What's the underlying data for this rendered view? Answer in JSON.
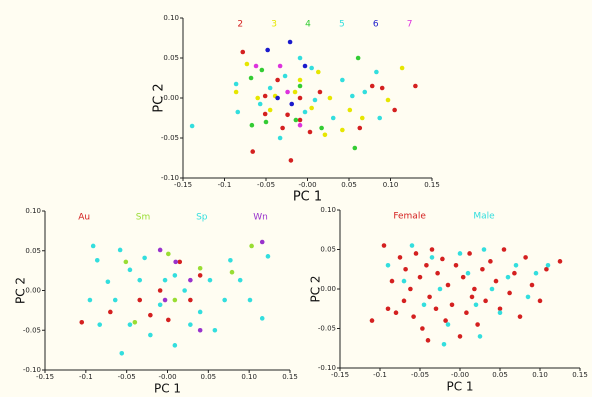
{
  "chart_data": [
    {
      "type": "scatter",
      "x_label": "PC 1",
      "y_label": "PC 2",
      "xlim": [
        -0.15,
        0.15
      ],
      "xticks": [
        -0.15,
        -0.1,
        -0.05,
        {
          "value": 0,
          "label": "-0.00"
        },
        0.05,
        {
          "value": 0.1,
          "label": "0.10"
        },
        0.15
      ],
      "ylim": [
        -0.1,
        0.1
      ],
      "yticks": [
        {
          "value": -0.1,
          "label": "-0.10"
        },
        -0.05,
        {
          "value": 0,
          "label": "-0.00"
        },
        0.05,
        {
          "value": 0.1,
          "label": "0.10"
        }
      ],
      "series": [
        {
          "name": "2",
          "color": "#d42020",
          "x": [
            -0.066,
            -0.02,
            -0.051,
            0.015,
            -0.009,
            0.078,
            0.09,
            0.13,
            0.063,
            -0.009,
            -0.03,
            -0.078,
            -0.051,
            0.105,
            0.003,
            -0.024,
            -0.036
          ],
          "values": [
            -0.067,
            -0.078,
            -0.02,
            0.0075,
            0.0,
            0.015,
            0.0125,
            0.015,
            -0.0375,
            -0.0275,
            -0.0375,
            0.0575,
            0.0025,
            -0.015,
            -0.0425,
            -0.021,
            0.0225
          ]
        },
        {
          "name": "3",
          "color": "#e6e600",
          "x": [
            -0.086,
            -0.06,
            -0.039,
            -0.009,
            0.013,
            0.051,
            0.066,
            0.042,
            0.021,
            0.114,
            0.097,
            0.005,
            -0.015,
            -0.073,
            0.027,
            -0.045
          ],
          "values": [
            0.0075,
            0.0,
            0.0025,
            0.0225,
            0.0325,
            -0.015,
            -0.025,
            -0.04,
            -0.046,
            0.0375,
            -0.0025,
            -0.0125,
            0.0075,
            0.0425,
            0.0,
            -0.015
          ]
        },
        {
          "name": "4",
          "color": "#33cc33",
          "x": [
            -0.068,
            -0.05,
            -0.014,
            0.061,
            0.057,
            -0.055,
            -0.009,
            0.017,
            -0.067
          ],
          "values": [
            0.025,
            -0.03,
            -0.0275,
            0.05,
            -0.0625,
            0.035,
            0.015,
            -0.0375,
            -0.034
          ]
        },
        {
          "name": "5",
          "color": "#33dede",
          "x": [
            -0.139,
            -0.086,
            -0.045,
            -0.027,
            -0.009,
            0.005,
            0.042,
            0.054,
            0.069,
            0.083,
            0.087,
            -0.057,
            -0.033,
            0.009,
            0.031,
            -0.084,
            -0.003
          ],
          "values": [
            -0.035,
            0.0175,
            0.0125,
            0.0275,
            0.05,
            0.0375,
            0.0225,
            0.0025,
            0.0075,
            0.0325,
            -0.025,
            -0.0075,
            -0.05,
            -0.0025,
            -0.025,
            -0.0175,
            -0.0175
          ]
        },
        {
          "name": "6",
          "color": "#1a1acc",
          "x": [
            -0.048,
            -0.021,
            -0.003,
            -0.019,
            -0.036
          ],
          "values": [
            0.06,
            0.07,
            0.04,
            -0.0075,
            0.0
          ]
        },
        {
          "name": "7",
          "color": "#dd33dd",
          "x": [
            -0.062,
            -0.033,
            -0.024,
            -0.009
          ],
          "values": [
            0.04,
            0.04,
            0.0075,
            -0.034
          ]
        }
      ]
    },
    {
      "type": "scatter",
      "x_label": "PC 1",
      "y_label": "PC 2",
      "xlim": [
        -0.15,
        0.15
      ],
      "xticks": [
        -0.15,
        -0.1,
        -0.05,
        {
          "value": 0,
          "label": "-0.00"
        },
        0.05,
        {
          "value": 0.1,
          "label": "0.10"
        },
        0.15
      ],
      "ylim": [
        -0.1,
        0.1
      ],
      "yticks": [
        {
          "value": -0.1,
          "label": "-0.10"
        },
        -0.05,
        {
          "value": 0,
          "label": "0.00"
        },
        0.05,
        {
          "value": 0.1,
          "label": "0.10"
        }
      ],
      "series": [
        {
          "name": "Au",
          "color": "#d42020",
          "x": [
            -0.105,
            -0.07,
            -0.034,
            -0.009,
            0.001,
            0.028,
            0.04,
            -0.021,
            0.015
          ],
          "values": [
            -0.04,
            -0.027,
            -0.012,
            0.0,
            -0.037,
            -0.012,
            0.019,
            -0.031,
            0.036
          ]
        },
        {
          "name": "Sm",
          "color": "#99dd33",
          "x": [
            -0.051,
            0.001,
            0.079,
            0.103,
            0.04,
            -0.04,
            0.009
          ],
          "values": [
            0.036,
            0.046,
            0.023,
            0.056,
            0.028,
            -0.04,
            -0.012
          ]
        },
        {
          "name": "Sp",
          "color": "#33dede",
          "x": [
            -0.091,
            -0.058,
            -0.086,
            -0.073,
            -0.046,
            -0.028,
            -0.003,
            0.021,
            0.052,
            0.07,
            0.116,
            0.101,
            0.089,
            0.123,
            -0.056,
            -0.021,
            0.009,
            -0.095,
            -0.064,
            -0.046,
            0.028,
            0.058,
            -0.009,
            0.04,
            -0.083,
            0.077,
            -0.034,
            0.009
          ],
          "values": [
            0.056,
            0.051,
            0.038,
            0.011,
            0.026,
            0.041,
            0.013,
            0.0,
            0.013,
            -0.012,
            -0.035,
            -0.012,
            0.013,
            0.043,
            -0.079,
            -0.056,
            -0.069,
            -0.012,
            -0.012,
            -0.043,
            -0.043,
            -0.05,
            -0.018,
            -0.027,
            -0.043,
            0.038,
            0.013,
            0.019
          ]
        },
        {
          "name": "Wn",
          "color": "#9933cc",
          "x": [
            -0.009,
            0.028,
            0.04,
            0.01,
            -0.003,
            0.116
          ],
          "values": [
            0.051,
            0.013,
            -0.05,
            0.036,
            -0.012,
            0.061
          ]
        }
      ]
    },
    {
      "type": "scatter",
      "x_label": "PC 1",
      "y_label": "PC 2",
      "xlim": [
        -0.15,
        0.15
      ],
      "xticks": [
        -0.15,
        -0.1,
        -0.05,
        {
          "value": 0,
          "label": "-0.00"
        },
        0.05,
        {
          "value": 0.1,
          "label": "0.10"
        },
        0.15
      ],
      "ylim": [
        -0.1,
        0.1
      ],
      "yticks": [
        {
          "value": -0.1,
          "label": "-0.10"
        },
        -0.05,
        {
          "value": 0,
          "label": "-0.00"
        },
        0.05,
        {
          "value": 0.1,
          "label": "0.10"
        }
      ],
      "series": [
        {
          "name": "Female",
          "color": "#d42020",
          "x": [
            -0.11,
            -0.095,
            -0.09,
            -0.085,
            -0.08,
            -0.075,
            -0.07,
            -0.068,
            -0.062,
            -0.058,
            -0.055,
            -0.05,
            -0.047,
            -0.042,
            -0.038,
            -0.035,
            -0.03,
            -0.028,
            -0.022,
            -0.018,
            -0.015,
            -0.01,
            -0.005,
            0.0,
            0.004,
            0.008,
            0.012,
            0.018,
            0.022,
            0.028,
            0.032,
            0.038,
            0.045,
            0.05,
            0.055,
            0.062,
            0.068,
            0.075,
            0.082,
            0.09,
            0.1,
            0.108,
            0.125,
            -0.04,
            0.015
          ],
          "values": [
            -0.04,
            0.055,
            -0.025,
            0.01,
            -0.03,
            0.04,
            -0.015,
            0.025,
            0.0,
            -0.035,
            0.045,
            0.015,
            -0.05,
            0.03,
            -0.01,
            0.05,
            -0.025,
            0.02,
            0.038,
            -0.04,
            0.005,
            -0.02,
            0.03,
            -0.06,
            0.015,
            -0.03,
            0.045,
            0.0,
            -0.045,
            0.025,
            -0.015,
            0.035,
            0.01,
            -0.025,
            0.05,
            -0.005,
            0.02,
            -0.035,
            0.04,
            0.005,
            -0.015,
            0.025,
            0.035,
            -0.065,
            -0.01
          ]
        },
        {
          "name": "Male",
          "color": "#33dede",
          "x": [
            -0.09,
            -0.07,
            -0.06,
            -0.045,
            -0.035,
            -0.025,
            -0.015,
            0.0,
            0.01,
            0.02,
            0.03,
            0.04,
            0.05,
            0.06,
            0.07,
            0.085,
            0.095,
            0.11,
            -0.02,
            0.025
          ],
          "values": [
            0.03,
            0.01,
            0.055,
            -0.02,
            0.04,
            0.0,
            -0.045,
            0.045,
            0.02,
            -0.02,
            0.05,
            0.0,
            -0.03,
            0.015,
            0.03,
            -0.01,
            0.02,
            0.03,
            -0.07,
            -0.06
          ]
        }
      ]
    }
  ]
}
